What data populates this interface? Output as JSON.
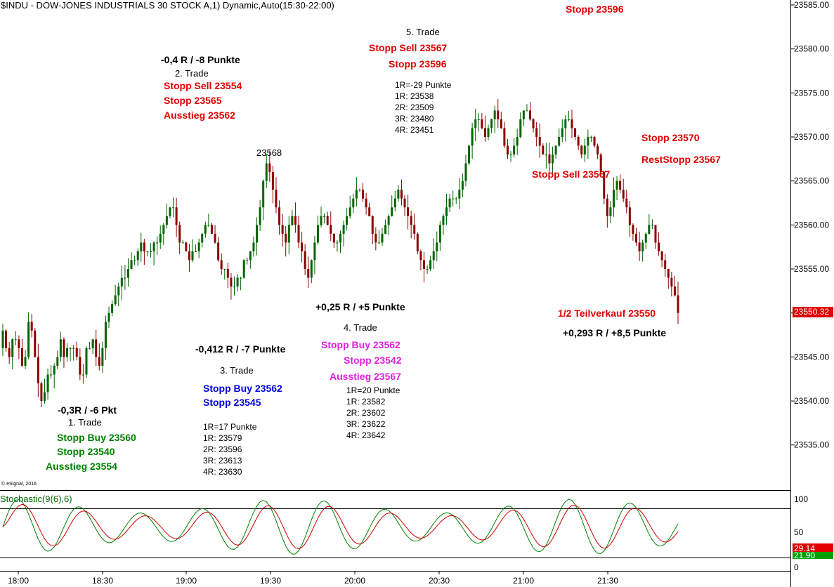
{
  "chart_title": "$INDU - DOW-JONES INDUSTRIALS 30 STOCK A,1) Dynamic,Auto(15:30-22:00)",
  "copyright": "© eSignal, 2016",
  "stochastic_label": "Stochastic(9(6),6)",
  "colors": {
    "up": "#006400",
    "down": "#8B0000",
    "red_text": "#E00000",
    "green_text": "#008000",
    "blue_text": "#0000E0",
    "magenta_text": "#E020E0",
    "badge_red": "#E00000",
    "badge_green": "#00A000"
  },
  "chart_data": {
    "type": "candlestick",
    "price_axis": {
      "min": 23530,
      "max": 23585,
      "ticks": [
        "23535.00",
        "23540.00",
        "23545.00",
        "23550.00",
        "23555.00",
        "23560.00",
        "23565.00",
        "23570.00",
        "23575.00",
        "23580.00",
        "23585.00"
      ]
    },
    "time_axis": {
      "ticks": [
        "18:00",
        "18:30",
        "19:00",
        "19:30",
        "20:00",
        "20:30",
        "21:00",
        "21:30"
      ]
    },
    "last_price": "23550.32",
    "closes": [
      23548,
      23546,
      23545,
      23547,
      23547,
      23546,
      23544,
      23545,
      23549,
      23548,
      23545,
      23542,
      23540,
      23541,
      23543,
      23543,
      23544,
      23545,
      23547,
      23545,
      23546,
      23546,
      23546,
      23545,
      23543,
      23543,
      23546,
      23546,
      23547,
      23545,
      23544,
      23546,
      23549,
      23550,
      23551,
      23552,
      23553,
      23554,
      23554,
      23555,
      23556,
      23556,
      23557,
      23558,
      23557,
      23557,
      23557,
      23558,
      23558,
      23559,
      23560,
      23561,
      23562,
      23562,
      23560,
      23558,
      23558,
      23557,
      23556,
      23557,
      23557,
      23558,
      23559,
      23560,
      23560,
      23559,
      23558,
      23556,
      23555,
      23555,
      23554,
      23553,
      23553,
      23554,
      23554,
      23556,
      23556,
      23557,
      23558,
      23560,
      23562,
      23565,
      23567,
      23566,
      23564,
      23562,
      23560,
      23559,
      23558,
      23560,
      23561,
      23560,
      23558,
      23557,
      23555,
      23554,
      23556,
      23558,
      23560,
      23561,
      23561,
      23560,
      23559,
      23558,
      23558,
      23559,
      23560,
      23561,
      23562,
      23563,
      23564,
      23564,
      23563,
      23562,
      23561,
      23559,
      23558,
      23558,
      23559,
      23560,
      23561,
      23562,
      23563,
      23564,
      23563,
      23562,
      23561,
      23560,
      23559,
      23557,
      23556,
      23555,
      23555,
      23556,
      23557,
      23558,
      23560,
      23561,
      23562,
      23563,
      23563,
      23563,
      23564,
      23565,
      23567,
      23569,
      23571,
      23572,
      23572,
      23571,
      23570,
      23571,
      23572,
      23573,
      23572,
      23571,
      23569,
      23568,
      23568,
      23569,
      23570,
      23572,
      23573,
      23573,
      23572,
      23571,
      23570,
      23569,
      23568,
      23568,
      23567,
      23568,
      23569,
      23570,
      23571,
      23572,
      23572,
      23571,
      23570,
      23569,
      23568,
      23569,
      23570,
      23570,
      23569,
      23568,
      23566,
      23563,
      23561,
      23562,
      23564,
      23565,
      23564,
      23563,
      23562,
      23560,
      23559,
      23558,
      23557,
      23558,
      23559,
      23560,
      23560,
      23558,
      23557,
      23556,
      23555,
      23554,
      23553,
      23552,
      23550
    ]
  },
  "annotations": [
    {
      "text": "Stopp 23596",
      "style": "bold",
      "color": "red"
    },
    {
      "text": "5. Trade",
      "style": "plain",
      "color": "black"
    },
    {
      "text": "Stopp Sell 23567",
      "style": "bold",
      "color": "red"
    },
    {
      "text": "Stopp 23596",
      "style": "bold",
      "color": "red"
    },
    {
      "text": "1R=-29 Punkte",
      "style": "small",
      "color": "black"
    },
    {
      "text": "1R: 23538",
      "style": "small",
      "color": "black"
    },
    {
      "text": "2R: 23509",
      "style": "small",
      "color": "black"
    },
    {
      "text": "3R: 23480",
      "style": "small",
      "color": "black"
    },
    {
      "text": "4R: 23451",
      "style": "small",
      "color": "black"
    },
    {
      "text": "-0,4 R / -8 Punkte",
      "style": "bold",
      "color": "black"
    },
    {
      "text": "2. Trade",
      "style": "plain",
      "color": "black"
    },
    {
      "text": "Stopp Sell 23554",
      "style": "bold",
      "color": "red"
    },
    {
      "text": "Stopp 23565",
      "style": "bold",
      "color": "red"
    },
    {
      "text": "Ausstieg 23562",
      "style": "bold",
      "color": "red"
    },
    {
      "text": "23568",
      "style": "plain",
      "color": "black"
    },
    {
      "text": "Stopp 23570",
      "style": "bold",
      "color": "red"
    },
    {
      "text": "RestStopp 23567",
      "style": "bold",
      "color": "red"
    },
    {
      "text": "Stopp Sell 23567",
      "style": "bold",
      "color": "red"
    },
    {
      "text": "+0,25 R / +5 Punkte",
      "style": "bold",
      "color": "black"
    },
    {
      "text": "4. Trade",
      "style": "plain",
      "color": "black"
    },
    {
      "text": "Stopp Buy 23562",
      "style": "bold",
      "color": "magenta"
    },
    {
      "text": "Stopp 23542",
      "style": "bold",
      "color": "magenta"
    },
    {
      "text": "Ausstieg 23567",
      "style": "bold",
      "color": "magenta"
    },
    {
      "text": "1R=20 Punkte",
      "style": "small",
      "color": "black"
    },
    {
      "text": "1R: 23582",
      "style": "small",
      "color": "black"
    },
    {
      "text": "2R: 23602",
      "style": "small",
      "color": "black"
    },
    {
      "text": "3R: 23622",
      "style": "small",
      "color": "black"
    },
    {
      "text": "4R: 23642",
      "style": "small",
      "color": "black"
    },
    {
      "text": "1/2 Teilverkauf 23550",
      "style": "bold",
      "color": "red"
    },
    {
      "text": "+0,293 R / +8,5 Punkte",
      "style": "bold",
      "color": "black"
    },
    {
      "text": "-0,412 R / -7 Punkte",
      "style": "bold",
      "color": "black"
    },
    {
      "text": "3. Trade",
      "style": "plain",
      "color": "black"
    },
    {
      "text": "Stopp Buy 23562",
      "style": "bold",
      "color": "blue"
    },
    {
      "text": "Stopp 23545",
      "style": "bold",
      "color": "blue"
    },
    {
      "text": "1R=17 Punkte",
      "style": "small",
      "color": "black"
    },
    {
      "text": "1R: 23579",
      "style": "small",
      "color": "black"
    },
    {
      "text": "2R: 23596",
      "style": "small",
      "color": "black"
    },
    {
      "text": "3R: 23613",
      "style": "small",
      "color": "black"
    },
    {
      "text": "4R: 23630",
      "style": "small",
      "color": "black"
    },
    {
      "text": "-0,3R / -6 Pkt",
      "style": "bold",
      "color": "black"
    },
    {
      "text": "1. Trade",
      "style": "plain",
      "color": "black"
    },
    {
      "text": "Stopp Buy 23560",
      "style": "bold",
      "color": "green"
    },
    {
      "text": "Stopp 23540",
      "style": "bold",
      "color": "green"
    },
    {
      "text": "Ausstieg 23554",
      "style": "bold",
      "color": "green"
    }
  ],
  "stochastic": {
    "axis_ticks": [
      "100",
      "50",
      "0"
    ],
    "k_last": "29.14",
    "d_last": "21.90"
  }
}
